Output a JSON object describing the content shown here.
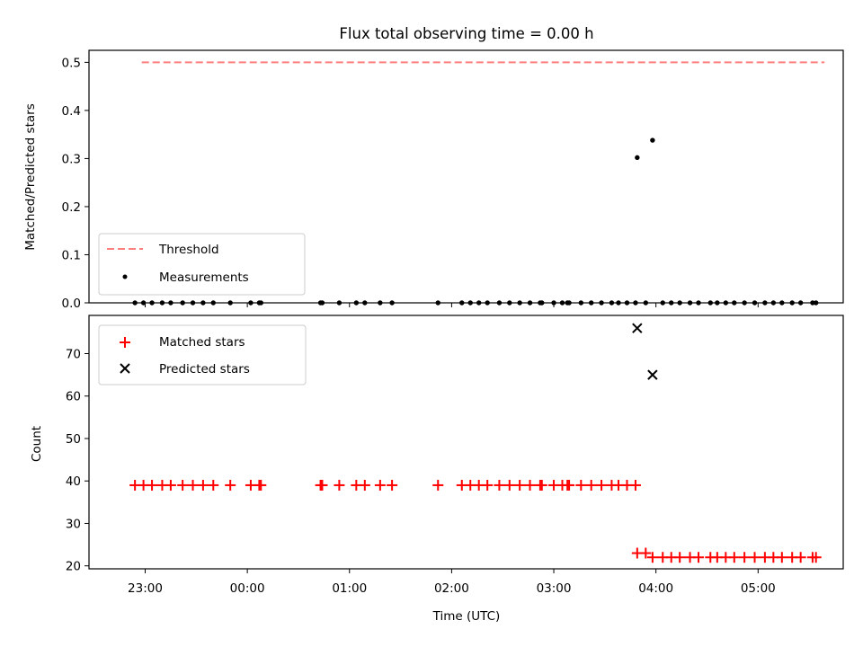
{
  "chart_data": [
    {
      "type": "scatter",
      "title": "Flux total observing time = 0.00 h",
      "ylabel": "Matched/Predicted stars",
      "ylim": [
        0,
        0.525
      ],
      "yticks": [
        0.0,
        0.1,
        0.2,
        0.3,
        0.4,
        0.5
      ],
      "ytick_labels": [
        "0.0",
        "0.1",
        "0.2",
        "0.3",
        "0.4",
        "0.5"
      ],
      "grid": false,
      "legend": {
        "location": "lower left",
        "entries": [
          {
            "label": "Threshold",
            "color": "#ff7f7f",
            "style": "dashed-line"
          },
          {
            "label": "Measurements",
            "color": "#000000",
            "style": "dot"
          }
        ]
      },
      "threshold": {
        "value": 0.5,
        "x_range": [
          "22:58",
          "05:39"
        ]
      },
      "series": [
        {
          "name": "Measurements",
          "color": "#000000",
          "points": [
            [
              "22:54",
              0.0
            ],
            [
              "22:59",
              0.0
            ],
            [
              "23:04",
              0.0
            ],
            [
              "23:10",
              0.0
            ],
            [
              "23:15",
              0.0
            ],
            [
              "23:22",
              0.0
            ],
            [
              "23:28",
              0.0
            ],
            [
              "23:34",
              0.0
            ],
            [
              "23:40",
              0.0
            ],
            [
              "23:50",
              0.0
            ],
            [
              "00:02",
              0.0
            ],
            [
              "00:07",
              0.0
            ],
            [
              "00:08",
              0.0
            ],
            [
              "00:43",
              0.0
            ],
            [
              "00:44",
              0.0
            ],
            [
              "00:54",
              0.0
            ],
            [
              "01:04",
              0.0
            ],
            [
              "01:09",
              0.0
            ],
            [
              "01:18",
              0.0
            ],
            [
              "01:25",
              0.0
            ],
            [
              "01:52",
              0.0
            ],
            [
              "02:06",
              0.0
            ],
            [
              "02:11",
              0.0
            ],
            [
              "02:16",
              0.0
            ],
            [
              "02:21",
              0.0
            ],
            [
              "02:28",
              0.0
            ],
            [
              "02:34",
              0.0
            ],
            [
              "02:40",
              0.0
            ],
            [
              "02:46",
              0.0
            ],
            [
              "02:52",
              0.0
            ],
            [
              "02:53",
              0.0
            ],
            [
              "03:00",
              0.0
            ],
            [
              "03:05",
              0.0
            ],
            [
              "03:08",
              0.0
            ],
            [
              "03:09",
              0.0
            ],
            [
              "03:16",
              0.0
            ],
            [
              "03:22",
              0.0
            ],
            [
              "03:28",
              0.0
            ],
            [
              "03:34",
              0.0
            ],
            [
              "03:38",
              0.0
            ],
            [
              "03:43",
              0.0
            ],
            [
              "03:48",
              0.0
            ],
            [
              "03:49",
              0.302
            ],
            [
              "03:54",
              0.0
            ],
            [
              "03:58",
              0.338
            ],
            [
              "04:04",
              0.0
            ],
            [
              "04:09",
              0.0
            ],
            [
              "04:14",
              0.0
            ],
            [
              "04:20",
              0.0
            ],
            [
              "04:25",
              0.0
            ],
            [
              "04:32",
              0.0
            ],
            [
              "04:36",
              0.0
            ],
            [
              "04:41",
              0.0
            ],
            [
              "04:46",
              0.0
            ],
            [
              "04:52",
              0.0
            ],
            [
              "04:58",
              0.0
            ],
            [
              "05:04",
              0.0
            ],
            [
              "05:09",
              0.0
            ],
            [
              "05:14",
              0.0
            ],
            [
              "05:20",
              0.0
            ],
            [
              "05:25",
              0.0
            ],
            [
              "05:32",
              0.0
            ],
            [
              "05:34",
              0.0
            ]
          ]
        }
      ]
    },
    {
      "type": "scatter",
      "xlabel": "Time (UTC)",
      "ylabel": "Count",
      "ylim": [
        19.3,
        79.0
      ],
      "yticks": [
        20,
        30,
        40,
        50,
        60,
        70
      ],
      "ytick_labels": [
        "20",
        "30",
        "40",
        "50",
        "60",
        "70"
      ],
      "xlim": [
        "22:27",
        "05:50"
      ],
      "xticks": [
        "23:00",
        "00:00",
        "01:00",
        "02:00",
        "03:00",
        "04:00",
        "05:00"
      ],
      "xtick_labels": [
        "23:00",
        "00:00",
        "01:00",
        "02:00",
        "03:00",
        "04:00",
        "05:00"
      ],
      "grid": false,
      "legend": {
        "location": "upper left",
        "entries": [
          {
            "label": "Matched stars",
            "color": "#ff0000",
            "style": "plus"
          },
          {
            "label": "Predicted stars",
            "color": "#000000",
            "style": "x"
          }
        ]
      },
      "series": [
        {
          "name": "Matched stars",
          "color": "#ff0000",
          "marker": "+",
          "points": [
            [
              "22:54",
              39
            ],
            [
              "22:59",
              39
            ],
            [
              "23:04",
              39
            ],
            [
              "23:10",
              39
            ],
            [
              "23:15",
              39
            ],
            [
              "23:22",
              39
            ],
            [
              "23:28",
              39
            ],
            [
              "23:34",
              39
            ],
            [
              "23:40",
              39
            ],
            [
              "23:50",
              39
            ],
            [
              "00:02",
              39
            ],
            [
              "00:07",
              39
            ],
            [
              "00:08",
              39
            ],
            [
              "00:43",
              39
            ],
            [
              "00:44",
              39
            ],
            [
              "00:54",
              39
            ],
            [
              "01:04",
              39
            ],
            [
              "01:09",
              39
            ],
            [
              "01:18",
              39
            ],
            [
              "01:25",
              39
            ],
            [
              "01:52",
              39
            ],
            [
              "02:06",
              39
            ],
            [
              "02:11",
              39
            ],
            [
              "02:16",
              39
            ],
            [
              "02:21",
              39
            ],
            [
              "02:28",
              39
            ],
            [
              "02:34",
              39
            ],
            [
              "02:40",
              39
            ],
            [
              "02:46",
              39
            ],
            [
              "02:52",
              39
            ],
            [
              "02:53",
              39
            ],
            [
              "03:00",
              39
            ],
            [
              "03:05",
              39
            ],
            [
              "03:08",
              39
            ],
            [
              "03:09",
              39
            ],
            [
              "03:16",
              39
            ],
            [
              "03:22",
              39
            ],
            [
              "03:28",
              39
            ],
            [
              "03:34",
              39
            ],
            [
              "03:38",
              39
            ],
            [
              "03:43",
              39
            ],
            [
              "03:48",
              39
            ],
            [
              "03:49",
              23
            ],
            [
              "03:54",
              23
            ],
            [
              "03:58",
              22
            ],
            [
              "04:04",
              22
            ],
            [
              "04:09",
              22
            ],
            [
              "04:14",
              22
            ],
            [
              "04:20",
              22
            ],
            [
              "04:25",
              22
            ],
            [
              "04:32",
              22
            ],
            [
              "04:36",
              22
            ],
            [
              "04:41",
              22
            ],
            [
              "04:46",
              22
            ],
            [
              "04:52",
              22
            ],
            [
              "04:58",
              22
            ],
            [
              "05:04",
              22
            ],
            [
              "05:09",
              22
            ],
            [
              "05:14",
              22
            ],
            [
              "05:20",
              22
            ],
            [
              "05:25",
              22
            ],
            [
              "05:32",
              22
            ],
            [
              "05:34",
              22
            ]
          ]
        },
        {
          "name": "Predicted stars",
          "color": "#000000",
          "marker": "x",
          "points": [
            [
              "03:49",
              76
            ],
            [
              "03:58",
              65
            ]
          ]
        }
      ]
    }
  ]
}
